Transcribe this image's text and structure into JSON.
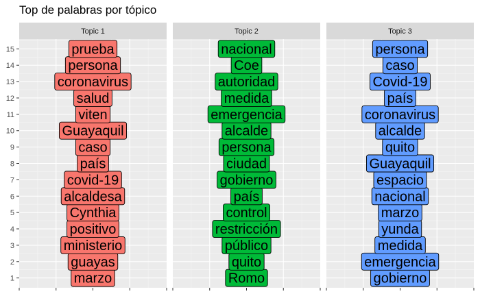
{
  "title": "Top de palabras por tópico",
  "chart_data": {
    "type": "label",
    "title": "Top de palabras por tópico",
    "xlabel": "",
    "ylabel": "",
    "ylim": [
      0.4,
      15.6
    ],
    "y_ticks": [
      1,
      2,
      3,
      4,
      5,
      6,
      7,
      8,
      9,
      10,
      11,
      12,
      13,
      14,
      15
    ],
    "grid": true,
    "facets": [
      {
        "name": "Topic 1",
        "color": "#F8766D",
        "points": [
          {
            "y": 15,
            "label": "prueba"
          },
          {
            "y": 14,
            "label": "persona"
          },
          {
            "y": 13,
            "label": "coronavirus"
          },
          {
            "y": 12,
            "label": "salud"
          },
          {
            "y": 11,
            "label": "viten"
          },
          {
            "y": 10,
            "label": "Guayaquil"
          },
          {
            "y": 9,
            "label": "caso"
          },
          {
            "y": 8,
            "label": "país"
          },
          {
            "y": 7,
            "label": "covid-19"
          },
          {
            "y": 6,
            "label": "alcaldesa"
          },
          {
            "y": 5,
            "label": "Cynthia"
          },
          {
            "y": 4,
            "label": "positivo"
          },
          {
            "y": 3,
            "label": "ministerio"
          },
          {
            "y": 2,
            "label": "guayas"
          },
          {
            "y": 1,
            "label": "marzo"
          }
        ]
      },
      {
        "name": "Topic 2",
        "color": "#00BA38",
        "points": [
          {
            "y": 15,
            "label": "nacional"
          },
          {
            "y": 14,
            "label": "Coe"
          },
          {
            "y": 13,
            "label": "autoridad"
          },
          {
            "y": 12,
            "label": "medida"
          },
          {
            "y": 11,
            "label": "emergencia"
          },
          {
            "y": 10,
            "label": "alcalde"
          },
          {
            "y": 9,
            "label": "persona"
          },
          {
            "y": 8,
            "label": "ciudad"
          },
          {
            "y": 7,
            "label": "gobierno"
          },
          {
            "y": 6,
            "label": "país"
          },
          {
            "y": 5,
            "label": "control"
          },
          {
            "y": 4,
            "label": "restricción"
          },
          {
            "y": 3,
            "label": "público"
          },
          {
            "y": 2,
            "label": "quito"
          },
          {
            "y": 1,
            "label": "Romo"
          }
        ]
      },
      {
        "name": "Topic 3",
        "color": "#619CFF",
        "points": [
          {
            "y": 15,
            "label": "persona"
          },
          {
            "y": 14,
            "label": "caso"
          },
          {
            "y": 13,
            "label": "Covid-19"
          },
          {
            "y": 12,
            "label": "país"
          },
          {
            "y": 11,
            "label": "coronavirus"
          },
          {
            "y": 10,
            "label": "alcalde"
          },
          {
            "y": 9,
            "label": "quito"
          },
          {
            "y": 8,
            "label": "Guayaquil"
          },
          {
            "y": 7,
            "label": "espacio"
          },
          {
            "y": 6,
            "label": "nacional"
          },
          {
            "y": 5,
            "label": "marzo"
          },
          {
            "y": 4,
            "label": "yunda"
          },
          {
            "y": 3,
            "label": "medida"
          },
          {
            "y": 2,
            "label": "emergencia"
          },
          {
            "y": 1,
            "label": "gobierno"
          }
        ]
      }
    ]
  }
}
